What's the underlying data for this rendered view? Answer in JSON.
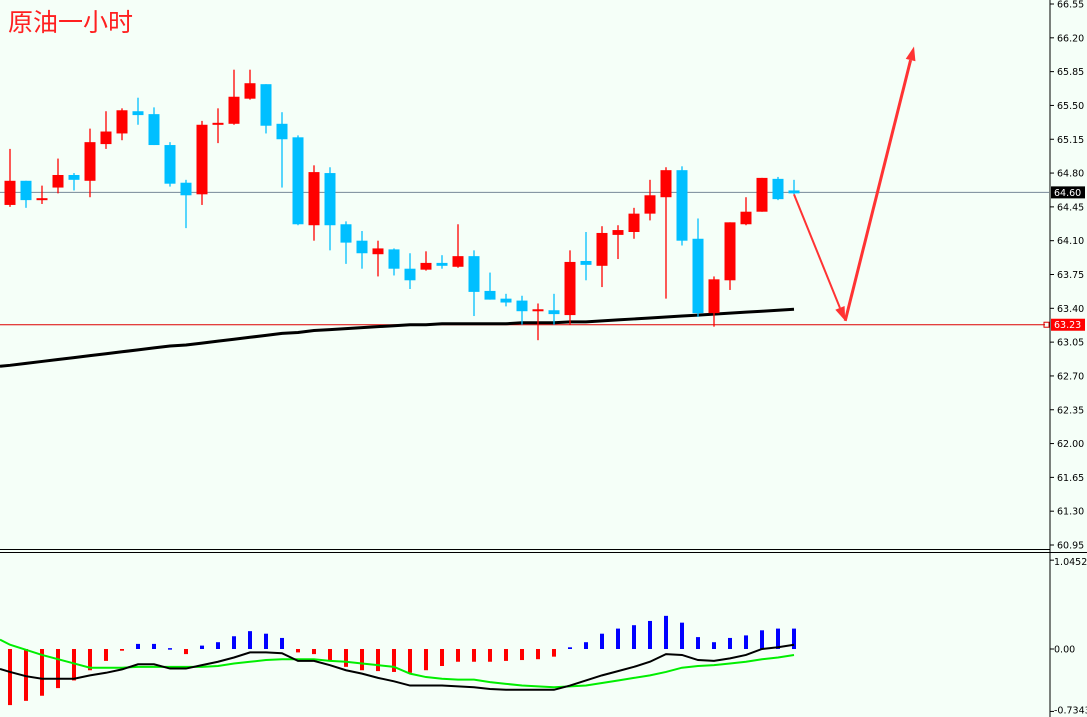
{
  "title": "原油一小时",
  "colors": {
    "up": "#ff0000",
    "down": "#00bfff",
    "ma": "#000000",
    "macd": "#000000",
    "signal": "#00ee00",
    "hist_pos": "#0000ff",
    "hist_neg": "#ff0000",
    "arrow": "#ff3333",
    "bg": "#f5fff8",
    "current_price_line": "#778899",
    "level_line": "#dd0000"
  },
  "chart_data": [
    {
      "type": "candlestick",
      "title": "原油一小时",
      "ylim": [
        60.95,
        66.55
      ],
      "yticks": [
        "66.55",
        "66.20",
        "65.85",
        "65.50",
        "65.15",
        "64.80",
        "64.45",
        "64.10",
        "63.75",
        "63.40",
        "63.05",
        "62.70",
        "62.35",
        "62.00",
        "61.65",
        "61.30",
        "60.95"
      ],
      "current_price": {
        "value": 64.6,
        "label": "64.60"
      },
      "level": {
        "value": 63.23,
        "label": "63.23"
      },
      "ohlc": [
        [
          64.47,
          65.05,
          64.45,
          64.72
        ],
        [
          64.72,
          64.72,
          64.44,
          64.52
        ],
        [
          64.52,
          64.67,
          64.48,
          64.54
        ],
        [
          64.65,
          64.95,
          64.59,
          64.78
        ],
        [
          64.78,
          64.8,
          64.62,
          64.73
        ],
        [
          64.72,
          65.26,
          64.55,
          65.12
        ],
        [
          65.1,
          65.44,
          65.05,
          65.23
        ],
        [
          65.21,
          65.47,
          65.14,
          65.45
        ],
        [
          65.44,
          65.58,
          65.3,
          65.4
        ],
        [
          65.41,
          65.48,
          65.09,
          65.09
        ],
        [
          65.09,
          65.12,
          64.66,
          64.69
        ],
        [
          64.7,
          64.73,
          64.23,
          64.57
        ],
        [
          64.58,
          65.34,
          64.47,
          65.3
        ],
        [
          65.3,
          65.47,
          65.11,
          65.32
        ],
        [
          65.31,
          65.87,
          65.3,
          65.59
        ],
        [
          65.57,
          65.87,
          65.56,
          65.73
        ],
        [
          65.72,
          65.72,
          65.21,
          65.29
        ],
        [
          65.31,
          65.43,
          64.65,
          65.15
        ],
        [
          65.17,
          65.19,
          64.26,
          64.27
        ],
        [
          64.26,
          64.88,
          64.1,
          64.81
        ],
        [
          64.8,
          64.86,
          64.0,
          64.26
        ],
        [
          64.27,
          64.3,
          63.86,
          64.08
        ],
        [
          64.1,
          64.2,
          63.81,
          63.97
        ],
        [
          63.96,
          64.1,
          63.73,
          64.02
        ],
        [
          64.01,
          64.02,
          63.74,
          63.81
        ],
        [
          63.81,
          63.97,
          63.6,
          63.69
        ],
        [
          63.8,
          63.99,
          63.79,
          63.87
        ],
        [
          63.87,
          63.95,
          63.81,
          63.84
        ],
        [
          63.83,
          64.27,
          63.82,
          63.94
        ],
        [
          63.94,
          64.0,
          63.32,
          63.57
        ],
        [
          63.58,
          63.77,
          63.49,
          63.49
        ],
        [
          63.5,
          63.55,
          63.42,
          63.46
        ],
        [
          63.48,
          63.53,
          63.23,
          63.37
        ],
        [
          63.37,
          63.45,
          63.07,
          63.39
        ],
        [
          63.38,
          63.55,
          63.23,
          63.34
        ],
        [
          63.33,
          64.0,
          63.23,
          63.88
        ],
        [
          63.89,
          64.19,
          63.69,
          63.85
        ],
        [
          63.84,
          64.25,
          63.62,
          64.18
        ],
        [
          64.16,
          64.26,
          63.91,
          64.21
        ],
        [
          64.19,
          64.44,
          64.12,
          64.38
        ],
        [
          64.38,
          64.73,
          64.31,
          64.57
        ],
        [
          64.55,
          64.86,
          63.5,
          64.83
        ],
        [
          64.83,
          64.87,
          64.05,
          64.1
        ],
        [
          64.12,
          64.33,
          63.31,
          63.35
        ],
        [
          63.35,
          63.73,
          63.21,
          63.7
        ],
        [
          63.69,
          64.29,
          63.59,
          64.29
        ],
        [
          64.27,
          64.55,
          64.26,
          64.4
        ],
        [
          64.4,
          64.75,
          64.4,
          64.75
        ],
        [
          64.74,
          64.76,
          64.52,
          64.53
        ],
        [
          64.62,
          64.73,
          64.58,
          64.59
        ]
      ],
      "ma": [
        62.81,
        62.83,
        62.85,
        62.87,
        62.89,
        62.91,
        62.93,
        62.95,
        62.97,
        62.99,
        63.01,
        63.02,
        63.04,
        63.06,
        63.08,
        63.1,
        63.12,
        63.14,
        63.15,
        63.17,
        63.18,
        63.19,
        63.2,
        63.21,
        63.22,
        63.23,
        63.23,
        63.24,
        63.24,
        63.24,
        63.24,
        63.24,
        63.25,
        63.25,
        63.25,
        63.26,
        63.26,
        63.27,
        63.28,
        63.29,
        63.3,
        63.31,
        63.32,
        63.33,
        63.34,
        63.35,
        63.36,
        63.37,
        63.38,
        63.39
      ],
      "annotations": [
        {
          "type": "arrow",
          "from": [
            49,
            64.58
          ],
          "to": [
            52.2,
            63.27
          ]
        },
        {
          "type": "arrow",
          "from": [
            52.2,
            63.27
          ],
          "to": [
            56.5,
            66.11
          ]
        }
      ]
    },
    {
      "type": "macd",
      "ylim": [
        -0.7343,
        1.0452
      ],
      "yticks": [
        "1.0452",
        "0.00",
        "-0.7343"
      ],
      "histogram": [
        -0.66,
        -0.61,
        -0.55,
        -0.46,
        -0.37,
        -0.25,
        -0.14,
        -0.02,
        0.06,
        0.06,
        0.01,
        -0.06,
        0.04,
        0.08,
        0.15,
        0.21,
        0.18,
        0.13,
        -0.04,
        -0.06,
        -0.14,
        -0.21,
        -0.25,
        -0.26,
        -0.27,
        -0.28,
        -0.25,
        -0.2,
        -0.15,
        -0.15,
        -0.15,
        -0.14,
        -0.13,
        -0.12,
        -0.09,
        0.02,
        0.08,
        0.18,
        0.24,
        0.28,
        0.33,
        0.39,
        0.31,
        0.14,
        0.08,
        0.13,
        0.16,
        0.22,
        0.24,
        0.24
      ],
      "macd": [
        -0.27,
        -0.32,
        -0.35,
        -0.35,
        -0.35,
        -0.31,
        -0.28,
        -0.24,
        -0.18,
        -0.18,
        -0.23,
        -0.23,
        -0.19,
        -0.15,
        -0.1,
        -0.04,
        -0.04,
        -0.05,
        -0.14,
        -0.14,
        -0.19,
        -0.25,
        -0.29,
        -0.34,
        -0.38,
        -0.43,
        -0.43,
        -0.43,
        -0.44,
        -0.45,
        -0.47,
        -0.48,
        -0.48,
        -0.48,
        -0.48,
        -0.43,
        -0.37,
        -0.31,
        -0.26,
        -0.21,
        -0.15,
        -0.06,
        -0.07,
        -0.13,
        -0.14,
        -0.11,
        -0.07,
        0.0,
        0.02,
        0.05
      ],
      "signal": [
        0.05,
        -0.01,
        -0.07,
        -0.12,
        -0.17,
        -0.22,
        -0.22,
        -0.22,
        -0.21,
        -0.21,
        -0.21,
        -0.21,
        -0.21,
        -0.2,
        -0.17,
        -0.15,
        -0.13,
        -0.12,
        -0.12,
        -0.12,
        -0.14,
        -0.15,
        -0.17,
        -0.19,
        -0.21,
        -0.29,
        -0.33,
        -0.35,
        -0.36,
        -0.36,
        -0.39,
        -0.41,
        -0.43,
        -0.44,
        -0.45,
        -0.44,
        -0.43,
        -0.4,
        -0.37,
        -0.34,
        -0.31,
        -0.27,
        -0.22,
        -0.2,
        -0.19,
        -0.17,
        -0.15,
        -0.12,
        -0.1,
        -0.07
      ]
    }
  ]
}
